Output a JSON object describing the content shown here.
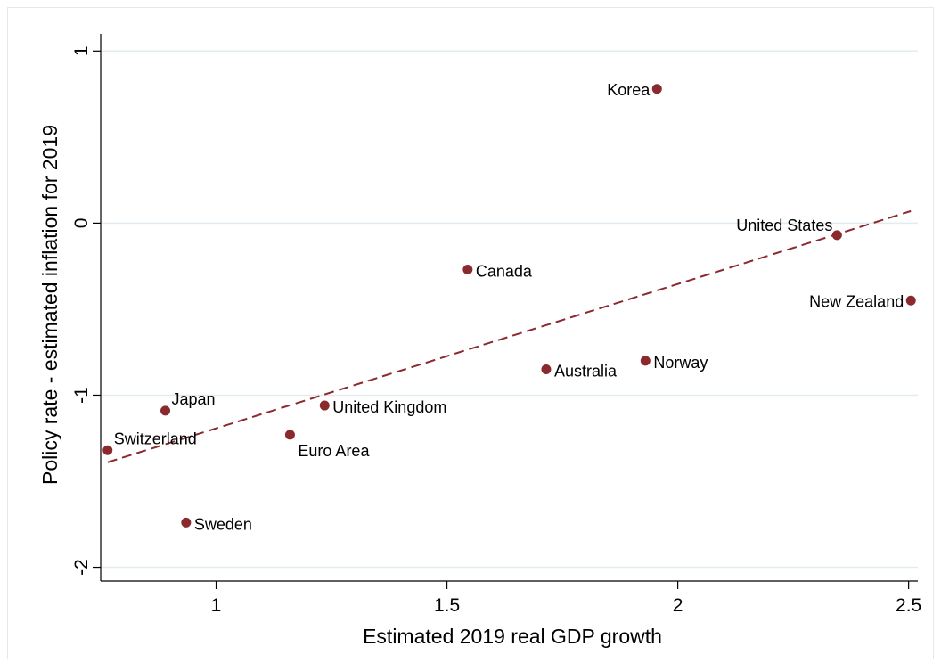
{
  "chart_data": {
    "type": "scatter",
    "title": "",
    "xlabel": "Estimated 2019 real GDP growth",
    "ylabel": "Policy rate - estimated inflation for 2019",
    "xlim": [
      0.75,
      2.52
    ],
    "ylim": [
      -2.08,
      1.1
    ],
    "xticks": [
      1,
      1.5,
      2,
      2.5
    ],
    "xtick_labels": [
      "1",
      "1.5",
      "2",
      "2.5"
    ],
    "yticks": [
      -2,
      -1,
      0,
      1
    ],
    "ytick_labels": [
      "-2",
      "-1",
      "0",
      "1"
    ],
    "grid": "horizontal",
    "marker_color": "#8b2a2e",
    "fit_line_color": "#8b2a2e",
    "points": [
      {
        "label": "Korea",
        "x": 1.955,
        "y": 0.78,
        "label_side": "left"
      },
      {
        "label": "United States",
        "x": 2.345,
        "y": -0.07,
        "label_side": "upper-left"
      },
      {
        "label": "New Zealand",
        "x": 2.505,
        "y": -0.45,
        "label_side": "left"
      },
      {
        "label": "Canada",
        "x": 1.545,
        "y": -0.27,
        "label_side": "right"
      },
      {
        "label": "Australia",
        "x": 1.715,
        "y": -0.85,
        "label_side": "right"
      },
      {
        "label": "Norway",
        "x": 1.93,
        "y": -0.8,
        "label_side": "right"
      },
      {
        "label": "Japan",
        "x": 0.89,
        "y": -1.09,
        "label_side": "upper-right"
      },
      {
        "label": "United Kingdom",
        "x": 1.235,
        "y": -1.06,
        "label_side": "right"
      },
      {
        "label": "Switzerland",
        "x": 0.765,
        "y": -1.32,
        "label_side": "upper-right"
      },
      {
        "label": "Euro Area",
        "x": 1.16,
        "y": -1.23,
        "label_side": "lower-right"
      },
      {
        "label": "Sweden",
        "x": 0.935,
        "y": -1.74,
        "label_side": "right"
      }
    ],
    "fit_line": {
      "style": "dashed",
      "x": [
        0.765,
        2.505
      ],
      "y": [
        -1.39,
        0.07
      ]
    }
  }
}
